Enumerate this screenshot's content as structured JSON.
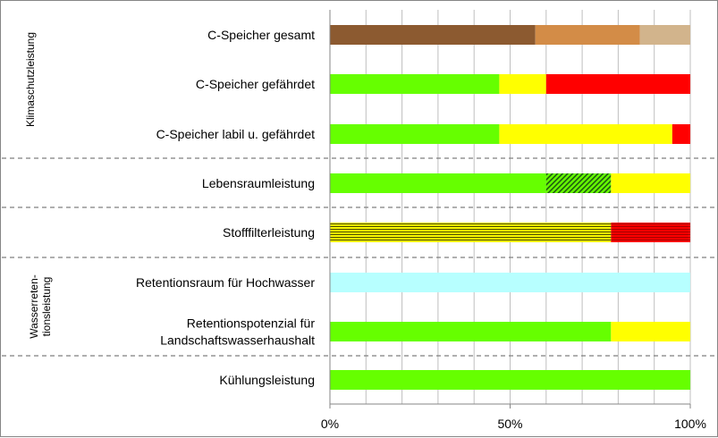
{
  "chart_data": {
    "type": "bar",
    "orientation": "horizontal",
    "stacked": true,
    "xlim": [
      0,
      100
    ],
    "x_ticks": [
      "0%",
      "50%",
      "100%"
    ],
    "x_tick_values": [
      0,
      50,
      100
    ],
    "grid": true,
    "legend": "none",
    "categories": [
      {
        "label": "C-Speicher gesamt",
        "segments": [
          {
            "value": 57,
            "color": "#8c5a30",
            "pattern": "solid"
          },
          {
            "value": 29,
            "color": "#d38c47",
            "pattern": "solid"
          },
          {
            "value": 14,
            "color": "#d2b48c",
            "pattern": "solid"
          }
        ]
      },
      {
        "label": "C-Speicher gefährdet",
        "segments": [
          {
            "value": 47,
            "color": "#66ff00",
            "pattern": "solid"
          },
          {
            "value": 13,
            "color": "#ffff00",
            "pattern": "solid"
          },
          {
            "value": 40,
            "color": "#ff0000",
            "pattern": "solid"
          }
        ]
      },
      {
        "label": "C-Speicher labil u. gefährdet",
        "segments": [
          {
            "value": 47,
            "color": "#66ff00",
            "pattern": "solid"
          },
          {
            "value": 48,
            "color": "#ffff00",
            "pattern": "solid"
          },
          {
            "value": 5,
            "color": "#ff0000",
            "pattern": "solid"
          }
        ]
      },
      {
        "label": "Lebensraumleistung",
        "segments": [
          {
            "value": 60,
            "color": "#66ff00",
            "pattern": "solid"
          },
          {
            "value": 18,
            "color": "#66ff00",
            "pattern": "diagonal"
          },
          {
            "value": 22,
            "color": "#ffff00",
            "pattern": "solid"
          }
        ]
      },
      {
        "label": "Stofffilterleistung",
        "segments": [
          {
            "value": 78,
            "color": "#ffff00",
            "pattern": "horizontal"
          },
          {
            "value": 22,
            "color": "#ff0000",
            "pattern": "horizontal"
          }
        ]
      },
      {
        "label": "Retentionsraum für Hochwasser",
        "segments": [
          {
            "value": 100,
            "color": "#b7ffff",
            "pattern": "solid"
          }
        ]
      },
      {
        "label": "Retentionspotenzial für\nLandschaftswasserhaushalt",
        "segments": [
          {
            "value": 78,
            "color": "#66ff00",
            "pattern": "solid"
          },
          {
            "value": 22,
            "color": "#ffff00",
            "pattern": "solid"
          }
        ]
      },
      {
        "label": "Kühlungsleistung",
        "segments": [
          {
            "value": 100,
            "color": "#66ff00",
            "pattern": "solid"
          }
        ]
      }
    ],
    "group_labels": [
      {
        "lines": [
          "Klimaschutzleistung"
        ],
        "rows": [
          0,
          2
        ]
      },
      {
        "lines": [
          "Wasserreten-",
          "tionsleistung"
        ],
        "rows": [
          5,
          6
        ]
      }
    ],
    "separators_after_rows": [
      2,
      3,
      4,
      6
    ]
  }
}
